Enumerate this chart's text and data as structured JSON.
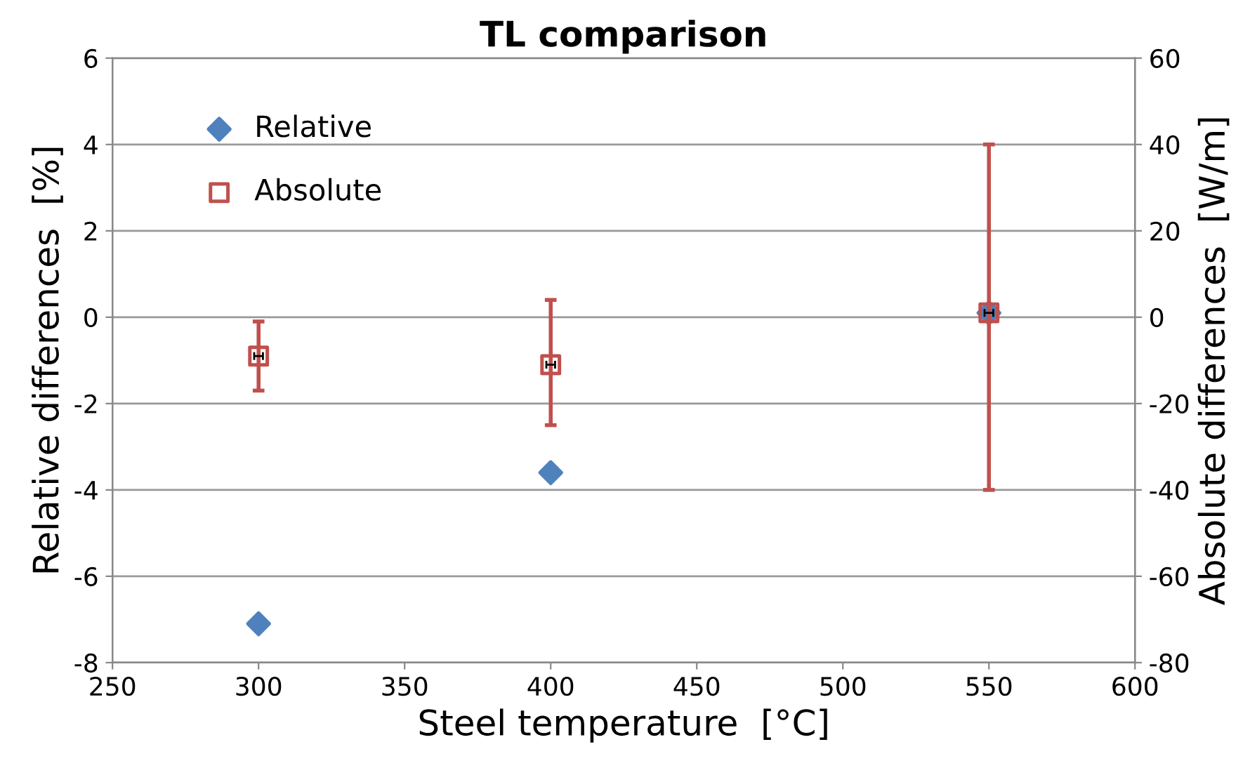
{
  "chart_data": {
    "type": "scatter",
    "title": "TL comparison",
    "xlabel": "Steel temperature  [°C]",
    "ylabel": "Relative differences  [%]",
    "y2label": "Absolute differences  [W/m]",
    "xlim": [
      250,
      600
    ],
    "xticks": [
      250,
      300,
      350,
      400,
      450,
      500,
      550,
      600
    ],
    "ylim": [
      -8,
      6
    ],
    "yticks": [
      -8,
      -6,
      -4,
      -2,
      0,
      2,
      4,
      6
    ],
    "y2lim": [
      -80,
      60
    ],
    "y2ticks": [
      -80,
      -60,
      -40,
      -20,
      0,
      20,
      40,
      60
    ],
    "grid": "y",
    "legend": "top left",
    "series": [
      {
        "name": "Relative",
        "color": "#4f81bd",
        "marker": "diamond",
        "x": [
          300,
          400,
          550
        ],
        "values": [
          -7.1,
          -3.6,
          0.1
        ]
      },
      {
        "name": "Absolute",
        "color": "#c0504d",
        "marker": "square",
        "axis": "y2",
        "x": [
          300,
          400,
          550
        ],
        "values": [
          -9,
          -11,
          1
        ],
        "errors": [
          [
            -17,
            -1
          ],
          [
            -25,
            4
          ],
          [
            -40,
            40
          ]
        ],
        "xerrors": [
          1.5,
          1.5,
          1.5
        ]
      }
    ]
  }
}
